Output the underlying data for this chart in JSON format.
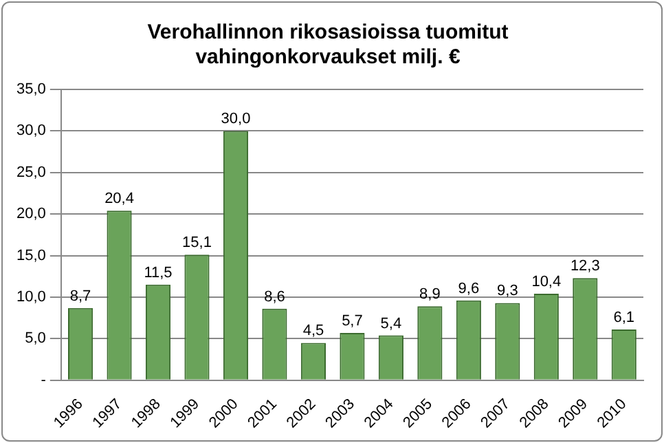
{
  "chart_data": {
    "type": "bar",
    "title": "Verohallinnon rikosasioissa tuomitut\nvahingonkorvaukset milj. €",
    "categories": [
      "1996",
      "1997",
      "1998",
      "1999",
      "2000",
      "2001",
      "2002",
      "2003",
      "2004",
      "2005",
      "2006",
      "2007",
      "2008",
      "2009",
      "2010"
    ],
    "values": [
      8.7,
      20.4,
      11.5,
      15.1,
      30.0,
      8.6,
      4.5,
      5.7,
      5.4,
      8.9,
      9.6,
      9.3,
      10.4,
      12.3,
      6.1
    ],
    "value_labels": [
      "8,7",
      "20,4",
      "11,5",
      "15,1",
      "30,0",
      "8,6",
      "4,5",
      "5,7",
      "5,4",
      "8,9",
      "9,6",
      "9,3",
      "10,4",
      "12,3",
      "6,1"
    ],
    "color": "#6aa35a",
    "ylim": [
      0,
      35
    ],
    "yticks": [
      {
        "value": 0,
        "label": "-"
      },
      {
        "value": 5,
        "label": "5,0"
      },
      {
        "value": 10,
        "label": "10,0"
      },
      {
        "value": 15,
        "label": "15,0"
      },
      {
        "value": 20,
        "label": "20,0"
      },
      {
        "value": 25,
        "label": "25,0"
      },
      {
        "value": 30,
        "label": "30,0"
      },
      {
        "value": 35,
        "label": "35,0"
      }
    ],
    "grid": "y",
    "legend": false
  }
}
